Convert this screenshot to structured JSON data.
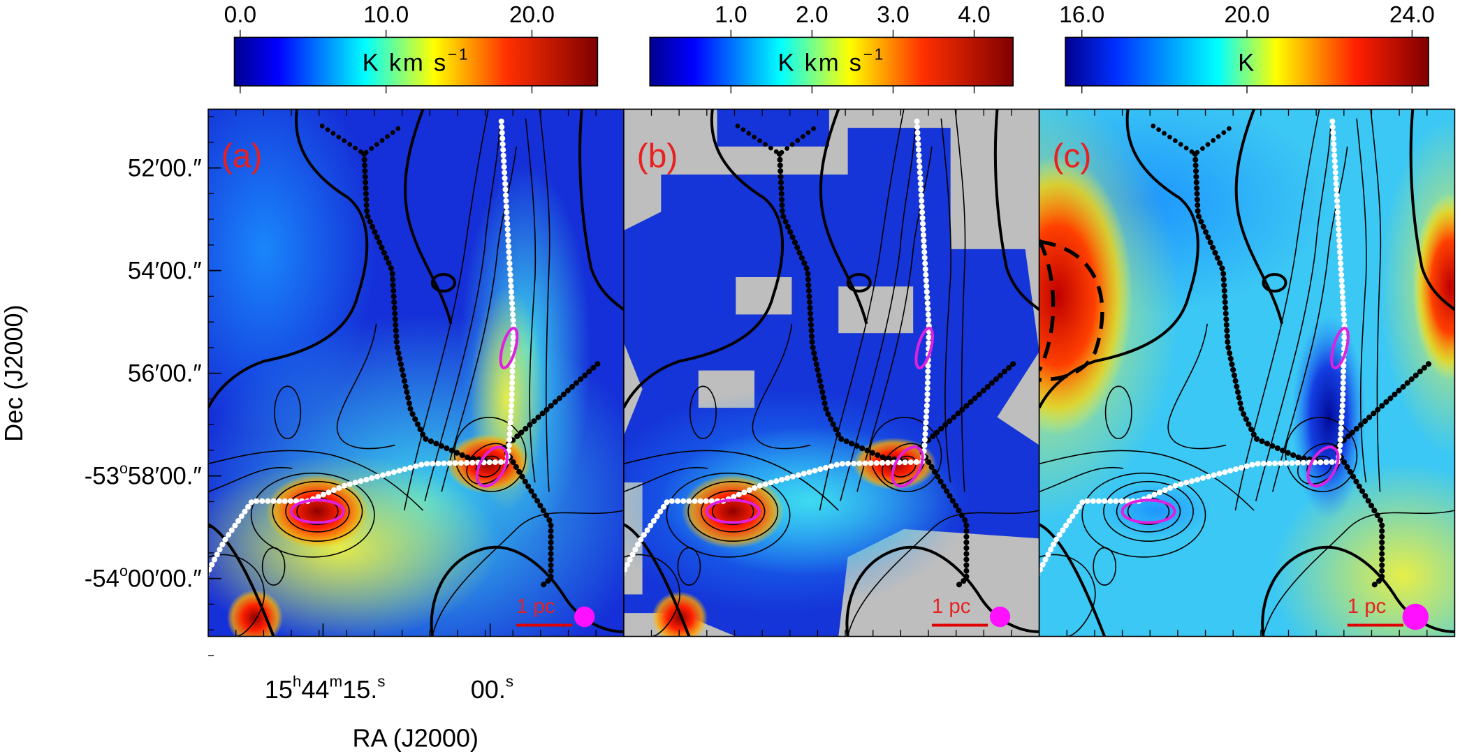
{
  "panels": [
    {
      "label": "(a)",
      "scalebar": "1 pc",
      "colorbar": {
        "label": "K km s",
        "label_sup": "−1",
        "vlim": [
          -0.4,
          24.5
        ],
        "ticks": [
          {
            "value": 0,
            "label": "0.0"
          },
          {
            "value": 10,
            "label": "10.0"
          },
          {
            "value": 20,
            "label": "20.0"
          }
        ]
      }
    },
    {
      "label": "(b)",
      "scalebar": "1 pc",
      "colorbar": {
        "label": "K km s",
        "label_sup": "−1",
        "vlim": [
          0.0,
          4.48
        ],
        "ticks": [
          {
            "value": 1,
            "label": "1.0"
          },
          {
            "value": 2,
            "label": "2.0"
          },
          {
            "value": 3,
            "label": "3.0"
          },
          {
            "value": 4,
            "label": "4.0"
          }
        ]
      }
    },
    {
      "label": "(c)",
      "scalebar": "1 pc",
      "colorbar": {
        "label": "K",
        "vlim": [
          15.6,
          24.4
        ],
        "ticks": [
          {
            "value": 16,
            "label": "16.0"
          },
          {
            "value": 20,
            "label": "20.0"
          },
          {
            "value": 24,
            "label": "24.0"
          }
        ]
      }
    }
  ],
  "y_axis": {
    "label": "Dec (J2000)",
    "ticks": [
      [
        "52′00.″"
      ],
      [
        "54′00.″"
      ],
      [
        "56′00.″"
      ],
      [
        "-53",
        "o",
        "58′00.″"
      ],
      [
        "-54",
        "o",
        "00′00.″"
      ]
    ]
  },
  "x_axis": {
    "label": "RA (J2000)",
    "ticks": [
      [
        "15",
        "h",
        "44",
        "m",
        "15.",
        "s"
      ],
      [
        "00.",
        "s"
      ]
    ]
  }
}
